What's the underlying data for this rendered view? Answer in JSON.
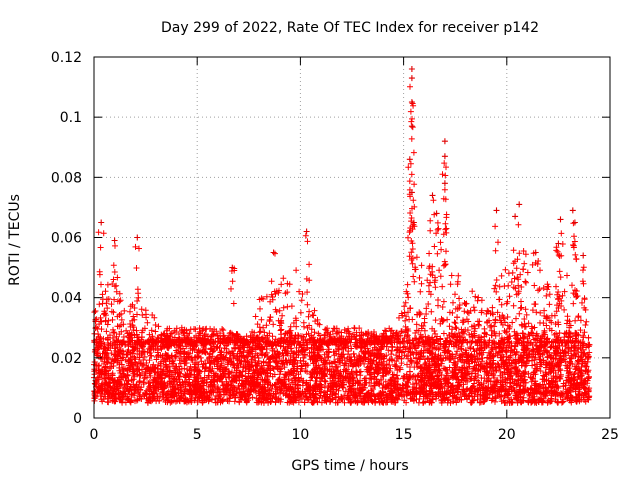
{
  "chart_data": {
    "type": "scatter",
    "title": "Day 299 of 2022, Rate Of TEC Index for receiver p142",
    "xlabel": "GPS time / hours",
    "ylabel": "ROTI / TECUs",
    "xlim": [
      0,
      25
    ],
    "ylim": [
      0,
      0.12
    ],
    "grid": true,
    "marker": "+",
    "marker_color": "#ff0000",
    "x_ticks": [
      0,
      5,
      10,
      15,
      20,
      25
    ],
    "x_tick_labels": [
      "0",
      "5",
      "10",
      "15",
      "20",
      "25"
    ],
    "y_ticks": [
      0,
      0.02,
      0.04,
      0.06,
      0.08,
      0.1,
      0.12
    ],
    "y_tick_labels": [
      "0",
      "0.02",
      "0.04",
      "0.06",
      "0.08",
      "0.1",
      "0.12"
    ],
    "x_data_range_hours": [
      0,
      24
    ],
    "baseline_band": [
      0.005,
      0.025
    ],
    "envelope": [
      {
        "x": 0,
        "y": 0.035
      },
      {
        "x": 0.5,
        "y": 0.045
      },
      {
        "x": 1,
        "y": 0.055
      },
      {
        "x": 1.5,
        "y": 0.035
      },
      {
        "x": 2,
        "y": 0.04
      },
      {
        "x": 3,
        "y": 0.033
      },
      {
        "x": 4,
        "y": 0.03
      },
      {
        "x": 5,
        "y": 0.03
      },
      {
        "x": 6,
        "y": 0.03
      },
      {
        "x": 7,
        "y": 0.028
      },
      {
        "x": 7.5,
        "y": 0.025
      },
      {
        "x": 8,
        "y": 0.04
      },
      {
        "x": 9,
        "y": 0.045
      },
      {
        "x": 9.5,
        "y": 0.05
      },
      {
        "x": 10,
        "y": 0.05
      },
      {
        "x": 11,
        "y": 0.03
      },
      {
        "x": 12,
        "y": 0.03
      },
      {
        "x": 13,
        "y": 0.03
      },
      {
        "x": 14,
        "y": 0.028
      },
      {
        "x": 15,
        "y": 0.04
      },
      {
        "x": 15.5,
        "y": 0.06
      },
      {
        "x": 16,
        "y": 0.055
      },
      {
        "x": 17,
        "y": 0.06
      },
      {
        "x": 18,
        "y": 0.045
      },
      {
        "x": 19,
        "y": 0.04
      },
      {
        "x": 20,
        "y": 0.05
      },
      {
        "x": 21,
        "y": 0.06
      },
      {
        "x": 22,
        "y": 0.045
      },
      {
        "x": 23,
        "y": 0.05
      },
      {
        "x": 24,
        "y": 0.04
      }
    ],
    "peaks": [
      {
        "x": 0.35,
        "y": 0.065
      },
      {
        "x": 1.0,
        "y": 0.059
      },
      {
        "x": 2.1,
        "y": 0.06
      },
      {
        "x": 6.7,
        "y": 0.05
      },
      {
        "x": 8.7,
        "y": 0.055
      },
      {
        "x": 10.3,
        "y": 0.062
      },
      {
        "x": 15.4,
        "y": 0.116
      },
      {
        "x": 15.4,
        "y": 0.113
      },
      {
        "x": 15.4,
        "y": 0.105
      },
      {
        "x": 15.4,
        "y": 0.097
      },
      {
        "x": 15.3,
        "y": 0.086
      },
      {
        "x": 15.4,
        "y": 0.075
      },
      {
        "x": 15.5,
        "y": 0.065
      },
      {
        "x": 16.4,
        "y": 0.074
      },
      {
        "x": 16.6,
        "y": 0.068
      },
      {
        "x": 17.0,
        "y": 0.092
      },
      {
        "x": 17.0,
        "y": 0.087
      },
      {
        "x": 17.0,
        "y": 0.078
      },
      {
        "x": 19.5,
        "y": 0.069
      },
      {
        "x": 20.6,
        "y": 0.071
      },
      {
        "x": 20.4,
        "y": 0.067
      },
      {
        "x": 21.4,
        "y": 0.055
      },
      {
        "x": 22.6,
        "y": 0.066
      },
      {
        "x": 23.2,
        "y": 0.069
      },
      {
        "x": 23.3,
        "y": 0.065
      },
      {
        "x": 22.5,
        "y": 0.058
      },
      {
        "x": 23.7,
        "y": 0.054
      }
    ]
  }
}
